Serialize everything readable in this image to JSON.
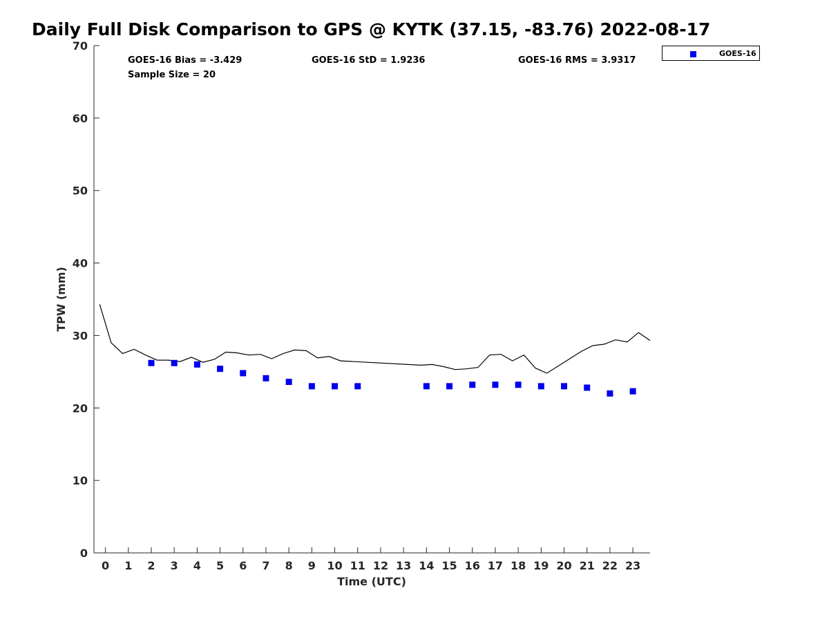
{
  "chart_data": {
    "type": "scatter",
    "title": "Daily Full Disk Comparison to GPS @ KYTK (37.15, -83.76) 2022-08-17",
    "xlabel": "Time (UTC)",
    "ylabel": "TPW (mm)",
    "xlim": [
      -0.5,
      23.75
    ],
    "ylim": [
      0,
      70
    ],
    "x_ticks": [
      0,
      1,
      2,
      3,
      4,
      5,
      6,
      7,
      8,
      9,
      10,
      11,
      12,
      13,
      14,
      15,
      16,
      17,
      18,
      19,
      20,
      21,
      22,
      23
    ],
    "y_ticks": [
      0,
      10,
      20,
      30,
      40,
      50,
      60,
      70
    ],
    "grid": false,
    "legend_position": "top-right outside",
    "stats": {
      "bias": "GOES-16 Bias = -3.429",
      "std": "GOES-16 StD = 1.9236",
      "rms": "GOES-16 RMS = 3.9317",
      "sample": "Sample Size = 20"
    },
    "series": [
      {
        "name": "GOES-16",
        "kind": "marker",
        "color": "#0000ee",
        "x": [
          2,
          3,
          4,
          5,
          6,
          7,
          8,
          9,
          10,
          11,
          14,
          15,
          16,
          17,
          18,
          19,
          20,
          21,
          22,
          23
        ],
        "y": [
          26.2,
          26.2,
          26.0,
          25.4,
          24.8,
          24.1,
          23.6,
          23.0,
          23.0,
          23.0,
          23.0,
          23.0,
          23.2,
          23.2,
          23.2,
          23.0,
          23.0,
          22.8,
          22.0,
          22.3
        ]
      },
      {
        "kind": "line",
        "color": "#000000",
        "x": [
          -0.25,
          0.25,
          0.75,
          1.25,
          1.75,
          2.25,
          2.75,
          3.25,
          3.75,
          4.25,
          4.75,
          5.25,
          5.75,
          6.25,
          6.75,
          7.25,
          7.75,
          8.25,
          8.75,
          9.25,
          9.75,
          10.25,
          13.75,
          14.25,
          14.75,
          15.25,
          15.75,
          16.25,
          16.75,
          17.25,
          17.75,
          18.25,
          18.75,
          19.25,
          19.75,
          20.25,
          20.75,
          21.25,
          21.75,
          22.25,
          22.75,
          23.25,
          23.75
        ],
        "y": [
          34.3,
          29.0,
          27.5,
          28.1,
          27.3,
          26.6,
          26.6,
          26.4,
          27.0,
          26.3,
          26.7,
          27.7,
          27.6,
          27.3,
          27.4,
          26.8,
          27.5,
          28.0,
          27.9,
          26.9,
          27.1,
          26.5,
          25.9,
          26.0,
          25.7,
          25.3,
          25.4,
          25.6,
          27.3,
          27.4,
          26.5,
          27.3,
          25.5,
          24.8,
          25.8,
          26.8,
          27.8,
          28.6,
          28.8,
          29.4,
          29.1,
          30.4,
          29.3
        ]
      }
    ]
  }
}
